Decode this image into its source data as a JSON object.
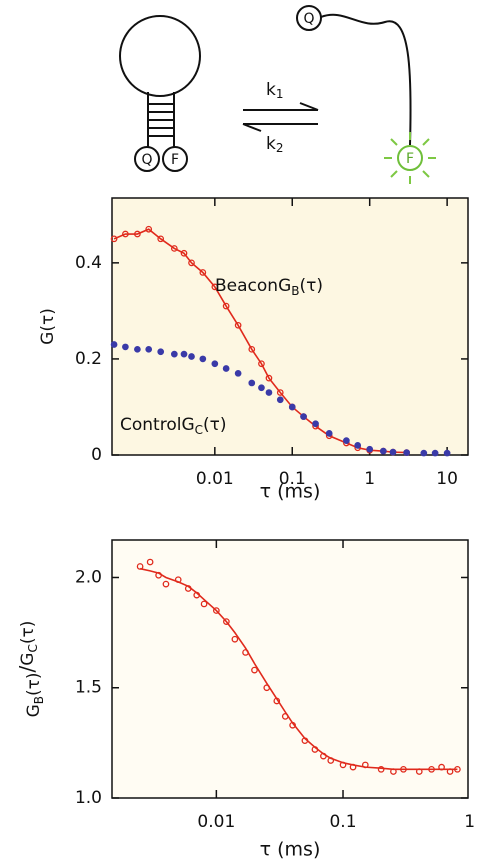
{
  "diagram": {
    "closed": {
      "quencher": "Q",
      "fluorophore": "F"
    },
    "rates": [
      {
        "symbol": "k",
        "sub": "1"
      },
      {
        "symbol": "k",
        "sub": "2"
      }
    ],
    "open": {
      "quencher": "Q",
      "fluorophore": "F"
    }
  },
  "chart_data": [
    {
      "type": "scatter",
      "ylabel": "G(τ)",
      "xlabel": "τ (ms)",
      "xscale": "log",
      "xlim": [
        0.00047,
        18.6
      ],
      "xticks": [
        0.01,
        0.1,
        1,
        10
      ],
      "ylim": [
        0,
        0.535
      ],
      "yticks": [
        0,
        0.2,
        0.4
      ],
      "background": "#fdf7e2",
      "x": [
        0.0005,
        0.0007,
        0.001,
        0.0014,
        0.002,
        0.003,
        0.004,
        0.005,
        0.007,
        0.01,
        0.014,
        0.02,
        0.03,
        0.04,
        0.05,
        0.07,
        0.1,
        0.14,
        0.2,
        0.3,
        0.5,
        0.7,
        1,
        1.5,
        2,
        3,
        5,
        7,
        10
      ],
      "series": [
        {
          "name": "Beacon",
          "label": {
            "symbol": "G",
            "sub": "B",
            "arg": "(τ)"
          },
          "color": "#e02a1c",
          "marker": "open-circle",
          "line": true,
          "values": [
            0.45,
            0.46,
            0.46,
            0.47,
            0.45,
            0.43,
            0.42,
            0.4,
            0.38,
            0.35,
            0.31,
            0.27,
            0.22,
            0.19,
            0.16,
            0.13,
            0.1,
            0.08,
            0.06,
            0.04,
            0.025,
            0.015,
            0.01,
            0.008,
            0.006,
            0.005,
            null,
            null,
            null
          ]
        },
        {
          "name": "Control",
          "label": {
            "symbol": "G",
            "sub": "C",
            "arg": "(τ)"
          },
          "color": "#3a3aa8",
          "marker": "dot",
          "line": false,
          "values": [
            0.23,
            0.225,
            0.22,
            0.22,
            0.215,
            0.21,
            0.21,
            0.205,
            0.2,
            0.19,
            0.18,
            0.17,
            0.15,
            0.14,
            0.13,
            0.115,
            0.1,
            0.08,
            0.065,
            0.045,
            0.03,
            0.02,
            0.012,
            0.008,
            0.006,
            0.005,
            0.004,
            0.004,
            0.004
          ]
        }
      ]
    },
    {
      "type": "scatter",
      "ylabel": {
        "numerator": {
          "symbol": "G",
          "sub": "B",
          "arg": "(τ)"
        },
        "separator": "/",
        "denominator": {
          "symbol": "G",
          "sub": "C",
          "arg": "(τ)"
        }
      },
      "xlabel": "τ (ms)",
      "xscale": "log",
      "xlim": [
        0.0015,
        0.97
      ],
      "xticks": [
        0.01,
        0.1,
        1
      ],
      "ylim": [
        1.0,
        2.17
      ],
      "yticks": [
        {
          "value": 1.0,
          "label": "1.0"
        },
        1.5,
        {
          "value": 2.0,
          "label": "2.0"
        }
      ],
      "background": "#fffcf3",
      "x": [
        0.0025,
        0.003,
        0.0035,
        0.004,
        0.005,
        0.006,
        0.007,
        0.008,
        0.01,
        0.012,
        0.014,
        0.017,
        0.02,
        0.025,
        0.03,
        0.035,
        0.04,
        0.05,
        0.06,
        0.07,
        0.08,
        0.1,
        0.12,
        0.15,
        0.2,
        0.25,
        0.3,
        0.4,
        0.5,
        0.6,
        0.7,
        0.8
      ],
      "series": [
        {
          "color": "#e02a1c",
          "marker": "open-circle",
          "line": false,
          "values": [
            2.05,
            2.07,
            2.01,
            1.97,
            1.99,
            1.95,
            1.92,
            1.88,
            1.85,
            1.8,
            1.72,
            1.66,
            1.58,
            1.5,
            1.44,
            1.37,
            1.33,
            1.26,
            1.22,
            1.19,
            1.17,
            1.15,
            1.14,
            1.15,
            1.13,
            1.12,
            1.13,
            1.12,
            1.13,
            1.14,
            1.12,
            1.13
          ]
        },
        {
          "color": "#e02a1c",
          "marker": "none",
          "line": true,
          "values": [
            2.04,
            2.03,
            2.02,
            2.0,
            1.98,
            1.96,
            1.93,
            1.9,
            1.85,
            1.8,
            1.75,
            1.68,
            1.61,
            1.52,
            1.45,
            1.39,
            1.34,
            1.27,
            1.23,
            1.2,
            1.18,
            1.16,
            1.15,
            1.14,
            1.135,
            1.13,
            1.13,
            1.13,
            1.13,
            1.13,
            1.13,
            1.13
          ]
        }
      ]
    }
  ]
}
